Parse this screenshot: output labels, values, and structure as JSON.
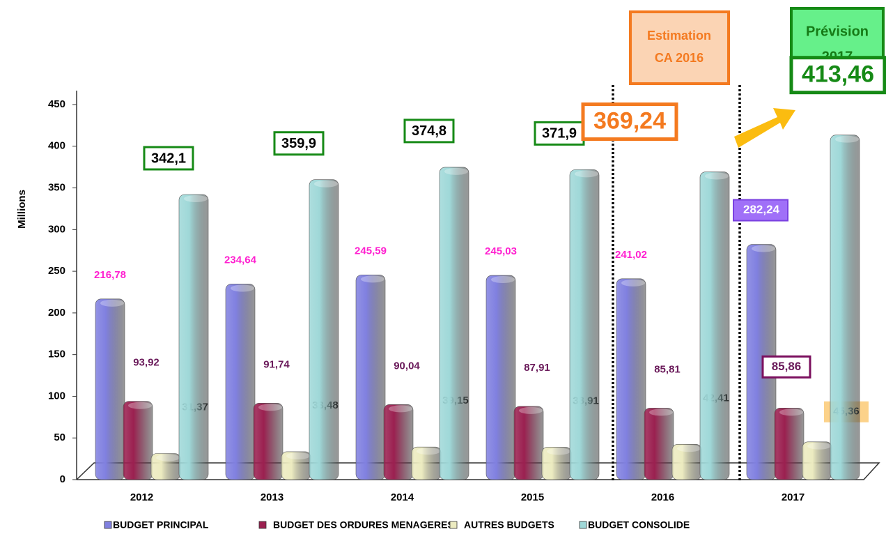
{
  "chart_data": {
    "type": "bar",
    "y_label": "Millions",
    "categories": [
      "2012",
      "2013",
      "2014",
      "2015",
      "2016",
      "2017"
    ],
    "series": [
      {
        "name": "BUDGET PRINCIPAL",
        "color": "#8080e0",
        "values": [
          216.78,
          234.64,
          245.59,
          245.03,
          241.02,
          282.24
        ],
        "value_labels": [
          "216,78",
          "234,64",
          "245,59",
          "245,03",
          "241,02",
          "282,24"
        ]
      },
      {
        "name": "BUDGET DES ORDURES MENAGERES",
        "color": "#9b2050",
        "values": [
          93.92,
          91.74,
          90.04,
          87.91,
          85.81,
          85.86
        ],
        "value_labels": [
          "93,92",
          "91,74",
          "90,04",
          "87,91",
          "85,81",
          "85,86"
        ]
      },
      {
        "name": "AUTRES BUDGETS",
        "color": "#ecebc0",
        "values": [
          31.37,
          33.48,
          39.15,
          38.91,
          42.41,
          45.36
        ],
        "value_labels": [
          "31,37",
          "33,48",
          "39,15",
          "38,91",
          "42,41",
          "45,36"
        ]
      },
      {
        "name": "BUDGET CONSOLIDE",
        "color": "#9fd8d8",
        "values": [
          342.1,
          359.9,
          374.8,
          371.9,
          369.24,
          413.46
        ],
        "value_labels": [
          "342,1",
          "359,9",
          "374,8",
          "371,9",
          "369,24",
          "413,46"
        ]
      }
    ],
    "annotations": [
      [
        "Estimation",
        "CA 2016"
      ],
      [
        "Prévision",
        "2017"
      ]
    ],
    "ylim": [
      0,
      450
    ],
    "yticks": [
      0,
      50,
      100,
      150,
      200,
      250,
      300,
      350,
      400,
      450
    ]
  }
}
